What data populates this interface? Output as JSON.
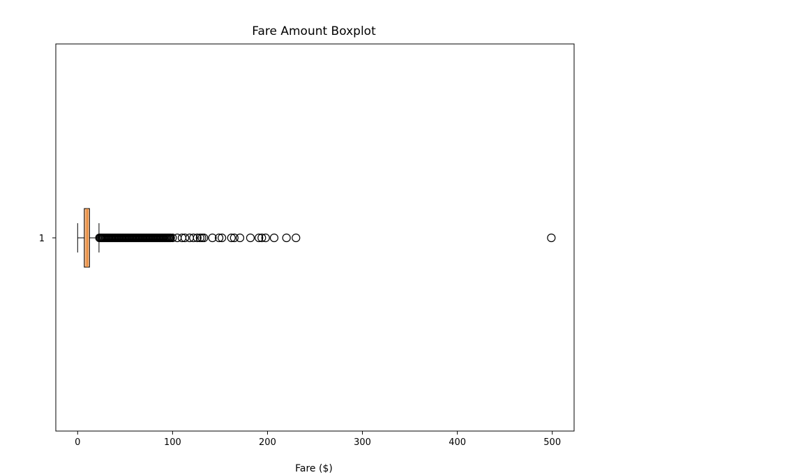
{
  "chart_data": {
    "type": "boxplot",
    "title": "Fare Amount Boxplot",
    "xlabel": "Fare ($)",
    "ylabel": "",
    "xlim": [
      -23,
      523
    ],
    "xticks": [
      0,
      100,
      200,
      300,
      400,
      500
    ],
    "yticks": [
      "1"
    ],
    "orientation": "horizontal",
    "grid": false,
    "box_color": "#f5b47f",
    "box": {
      "category": "1",
      "whisker_low": 0,
      "q1": 7,
      "median": 10,
      "q3": 12.5,
      "whisker_high": 22.5
    },
    "outliers": [
      23,
      24,
      25,
      26,
      27,
      28,
      29,
      30,
      31,
      32,
      33,
      34,
      35,
      36,
      37,
      38,
      39,
      40,
      41,
      42,
      43,
      44,
      45,
      46,
      47,
      48,
      49,
      50,
      51,
      52,
      53,
      54,
      55,
      56,
      57,
      58,
      59,
      60,
      61,
      62,
      63,
      64,
      65,
      66,
      67,
      68,
      69,
      70,
      71,
      72,
      73,
      74,
      75,
      76,
      77,
      78,
      79,
      80,
      81,
      82,
      83,
      84,
      85,
      86,
      87,
      88,
      89,
      90,
      91,
      92,
      93,
      94,
      95,
      96,
      97,
      98,
      100,
      105,
      110,
      113,
      118,
      122,
      126,
      129,
      131,
      133,
      142,
      149,
      152,
      162,
      165,
      171,
      182,
      191,
      194,
      198,
      207,
      220,
      230,
      499
    ]
  }
}
